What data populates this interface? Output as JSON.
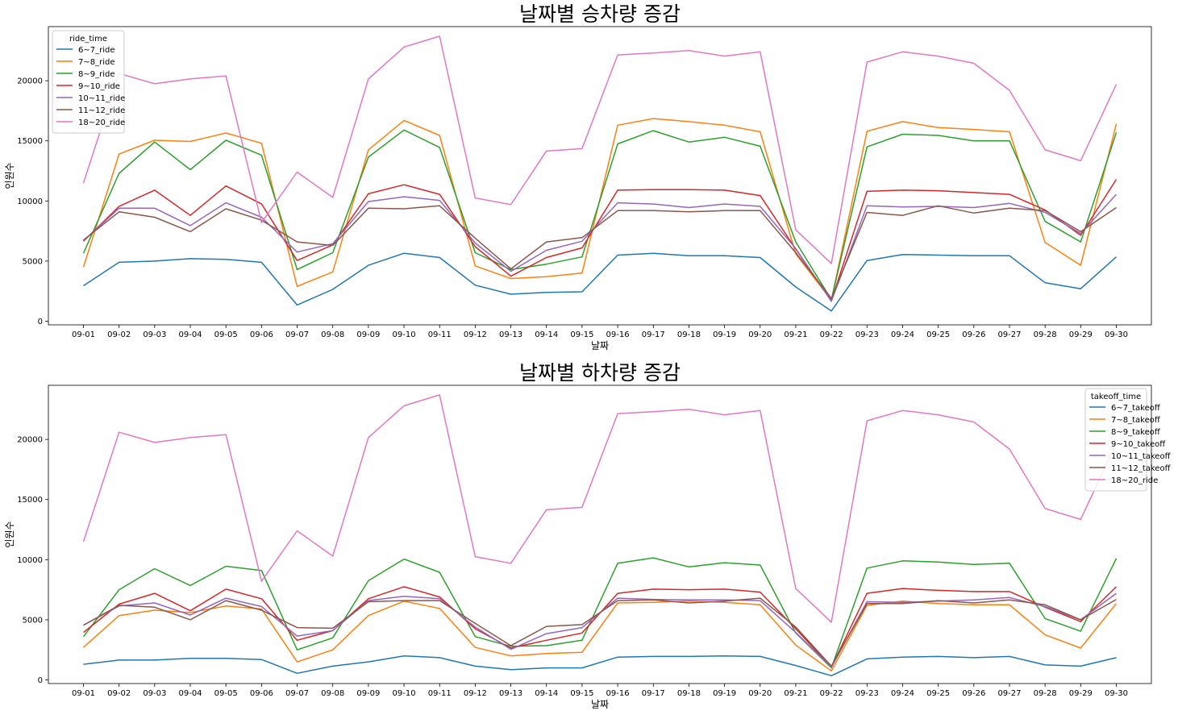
{
  "chart_data": [
    {
      "type": "line",
      "title": "날짜별 승차량 증감",
      "xlabel": "날짜",
      "ylabel": "인원수",
      "ylim": [
        -300,
        24500
      ],
      "yticks": [
        0,
        5000,
        10000,
        15000,
        20000
      ],
      "grid": false,
      "legend_title": "ride_time",
      "legend_position": "top-left",
      "x": [
        "09-01",
        "09-02",
        "09-03",
        "09-04",
        "09-05",
        "09-06",
        "09-07",
        "09-08",
        "09-09",
        "09-10",
        "09-11",
        "09-12",
        "09-13",
        "09-14",
        "09-15",
        "09-16",
        "09-17",
        "09-18",
        "09-19",
        "09-20",
        "09-21",
        "09-22",
        "09-23",
        "09-24",
        "09-25",
        "09-26",
        "09-27",
        "09-28",
        "09-29",
        "09-30"
      ],
      "series": [
        {
          "name": "6~7_ride",
          "color": "#1f77b4",
          "values": [
            2950,
            4900,
            5000,
            5200,
            5150,
            4900,
            1350,
            2650,
            4650,
            5650,
            5300,
            3000,
            2250,
            2400,
            2450,
            5500,
            5650,
            5450,
            5450,
            5300,
            2850,
            850,
            5050,
            5550,
            5500,
            5450,
            5450,
            3200,
            2700,
            5350
          ]
        },
        {
          "name": "7~8_ride",
          "color": "#ff7f0e",
          "values": [
            4500,
            13900,
            15050,
            14950,
            15650,
            14800,
            2900,
            4100,
            14250,
            16700,
            15450,
            4600,
            3550,
            3700,
            4000,
            16300,
            16850,
            16600,
            16300,
            15750,
            5600,
            1750,
            15800,
            16600,
            16100,
            15950,
            15750,
            6550,
            4650,
            16400
          ]
        },
        {
          "name": "8~9_ride",
          "color": "#2ca02c",
          "values": [
            5650,
            12300,
            14900,
            12600,
            15050,
            13800,
            4300,
            5700,
            13650,
            15900,
            14450,
            5700,
            4300,
            4750,
            5350,
            14750,
            15850,
            14900,
            15300,
            14550,
            6600,
            1800,
            14500,
            15550,
            15450,
            15000,
            15000,
            8300,
            6600,
            15700
          ]
        },
        {
          "name": "9~10_ride",
          "color": "#d62728",
          "values": [
            6650,
            9550,
            10900,
            8800,
            11250,
            9750,
            5050,
            6350,
            10600,
            11350,
            10550,
            6200,
            3750,
            5300,
            6100,
            10900,
            10950,
            10950,
            10900,
            10450,
            6000,
            1700,
            10800,
            10900,
            10850,
            10700,
            10550,
            9250,
            7150,
            11800
          ]
        },
        {
          "name": "10~11_ride",
          "color": "#9467bd",
          "values": [
            6700,
            9400,
            9400,
            7950,
            9850,
            8650,
            5750,
            6450,
            9950,
            10350,
            10050,
            6500,
            4150,
            5900,
            6650,
            9850,
            9750,
            9450,
            9750,
            9550,
            6050,
            1650,
            9600,
            9500,
            9550,
            9450,
            9800,
            9050,
            7300,
            10550
          ]
        },
        {
          "name": "11~12_ride",
          "color": "#8c564b",
          "values": [
            6750,
            9100,
            8650,
            7450,
            9350,
            8400,
            6600,
            6300,
            9400,
            9350,
            9600,
            6900,
            4350,
            6600,
            6950,
            9200,
            9200,
            9100,
            9200,
            9200,
            5700,
            1900,
            9050,
            8800,
            9600,
            9000,
            9400,
            9200,
            7450,
            9450
          ]
        },
        {
          "name": "18~20_ride",
          "color": "#e377c2",
          "values": [
            11500,
            20600,
            19750,
            20150,
            20400,
            8200,
            12400,
            10300,
            20150,
            22800,
            23700,
            10250,
            9700,
            14150,
            14350,
            22150,
            22300,
            22500,
            22050,
            22400,
            7600,
            4800,
            21550,
            22400,
            22050,
            21450,
            19200,
            14250,
            13350,
            19700
          ]
        }
      ]
    },
    {
      "type": "line",
      "title": "날짜별 하차량 증감",
      "xlabel": "날짜",
      "ylabel": "인원수",
      "ylim": [
        -300,
        24500
      ],
      "yticks": [
        0,
        5000,
        10000,
        15000,
        20000
      ],
      "grid": false,
      "legend_title": "takeoff_time",
      "legend_position": "top-right",
      "x": [
        "09-01",
        "09-02",
        "09-03",
        "09-04",
        "09-05",
        "09-06",
        "09-07",
        "09-08",
        "09-09",
        "09-10",
        "09-11",
        "09-12",
        "09-13",
        "09-14",
        "09-15",
        "09-16",
        "09-17",
        "09-18",
        "09-19",
        "09-20",
        "09-21",
        "09-22",
        "09-23",
        "09-24",
        "09-25",
        "09-26",
        "09-27",
        "09-28",
        "09-29",
        "09-30"
      ],
      "series": [
        {
          "name": "6~7_takeoff",
          "color": "#1f77b4",
          "values": [
            1300,
            1650,
            1650,
            1800,
            1800,
            1700,
            550,
            1150,
            1500,
            2000,
            1850,
            1150,
            850,
            1000,
            1000,
            1900,
            1950,
            1950,
            2000,
            1950,
            1200,
            350,
            1750,
            1900,
            1950,
            1850,
            1950,
            1250,
            1150,
            1850
          ]
        },
        {
          "name": "7~8_takeoff",
          "color": "#ff7f0e",
          "values": [
            2700,
            5350,
            5800,
            5600,
            6150,
            5900,
            1500,
            2500,
            5350,
            6550,
            5950,
            2700,
            2000,
            2200,
            2300,
            6400,
            6450,
            6550,
            6450,
            6250,
            2900,
            750,
            6200,
            6550,
            6350,
            6250,
            6250,
            3750,
            2650,
            6350
          ]
        },
        {
          "name": "8~9_takeoff",
          "color": "#2ca02c",
          "values": [
            3600,
            7500,
            9250,
            7850,
            9450,
            9100,
            2500,
            3500,
            8250,
            10050,
            8950,
            3600,
            2800,
            2850,
            3300,
            9700,
            10150,
            9400,
            9750,
            9550,
            3900,
            1000,
            9300,
            9900,
            9800,
            9600,
            9700,
            5100,
            4050,
            10100
          ]
        },
        {
          "name": "9~10_takeoff",
          "color": "#d62728",
          "values": [
            3950,
            6300,
            7200,
            5750,
            7550,
            6750,
            3300,
            4100,
            6750,
            7750,
            6900,
            4250,
            2650,
            3300,
            3900,
            7200,
            7550,
            7500,
            7550,
            7300,
            4250,
            1050,
            7200,
            7600,
            7450,
            7350,
            7350,
            6050,
            4850,
            7750
          ]
        },
        {
          "name": "10~11_takeoff",
          "color": "#9467bd",
          "values": [
            4550,
            6150,
            6400,
            5400,
            6800,
            6100,
            3650,
            4100,
            6600,
            6950,
            6750,
            4400,
            2550,
            3850,
            4350,
            6800,
            6700,
            6650,
            6650,
            6600,
            3950,
            1050,
            6500,
            6450,
            6550,
            6650,
            6850,
            6100,
            5000,
            7200
          ]
        },
        {
          "name": "11~12_takeoff",
          "color": "#8c564b",
          "values": [
            4550,
            6200,
            6050,
            5000,
            6600,
            5800,
            4350,
            4300,
            6500,
            6600,
            6600,
            4700,
            2850,
            4450,
            4600,
            6600,
            6650,
            6400,
            6550,
            6800,
            4400,
            1150,
            6350,
            6350,
            6600,
            6400,
            6650,
            6250,
            5000,
            6700
          ]
        },
        {
          "name": "18~20_ride",
          "color": "#e377c2",
          "values": [
            11500,
            20600,
            19750,
            20150,
            20400,
            8200,
            12400,
            10300,
            20150,
            22800,
            23700,
            10250,
            9700,
            14150,
            14350,
            22150,
            22300,
            22500,
            22050,
            22400,
            7600,
            4800,
            21550,
            22400,
            22050,
            21450,
            19200,
            14250,
            13350,
            19700
          ]
        }
      ]
    }
  ]
}
